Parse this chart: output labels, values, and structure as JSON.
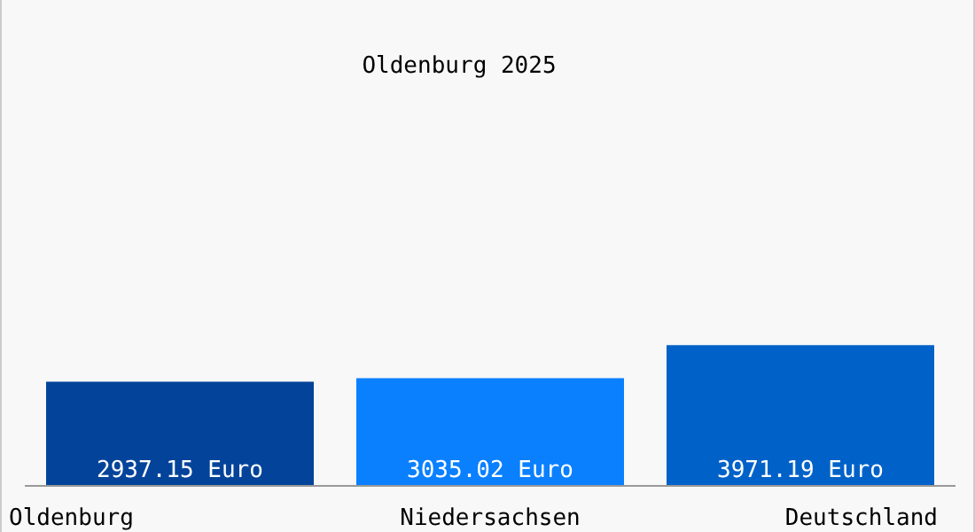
{
  "chart_data": {
    "type": "bar",
    "title": "Oldenburg 2025",
    "categories": [
      "Oldenburg",
      "Niedersachsen",
      "Deutschland"
    ],
    "values": [
      2937.15,
      3035.02,
      3971.19
    ],
    "colors": [
      "#03449a",
      "#0a80ff",
      "#0062c8"
    ],
    "value_labels": [
      "2937.15 Euro",
      "3035.02 Euro",
      "3971.19 Euro"
    ],
    "tick_labels": "x",
    "grid": false,
    "legend": false
  }
}
